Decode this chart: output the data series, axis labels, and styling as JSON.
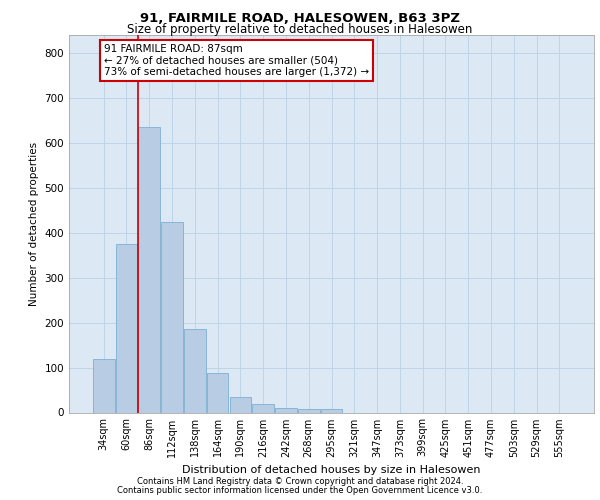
{
  "title1": "91, FAIRMILE ROAD, HALESOWEN, B63 3PZ",
  "title2": "Size of property relative to detached houses in Halesowen",
  "xlabel": "Distribution of detached houses by size in Halesowen",
  "ylabel": "Number of detached properties",
  "categories": [
    "34sqm",
    "60sqm",
    "86sqm",
    "112sqm",
    "138sqm",
    "164sqm",
    "190sqm",
    "216sqm",
    "242sqm",
    "268sqm",
    "295sqm",
    "321sqm",
    "347sqm",
    "373sqm",
    "399sqm",
    "425sqm",
    "451sqm",
    "477sqm",
    "503sqm",
    "529sqm",
    "555sqm"
  ],
  "values": [
    120,
    375,
    635,
    425,
    185,
    88,
    35,
    18,
    10,
    8,
    8,
    0,
    0,
    0,
    0,
    0,
    0,
    0,
    0,
    0,
    0
  ],
  "bar_color": "#b8cce4",
  "bar_edge_color": "#7bafd4",
  "grid_color": "#c0d4e8",
  "background_color": "#dce9f5",
  "vline_color": "#cc0000",
  "annotation_line1": "91 FAIRMILE ROAD: 87sqm",
  "annotation_line2": "← 27% of detached houses are smaller (504)",
  "annotation_line3": "73% of semi-detached houses are larger (1,372) →",
  "annotation_box_color": "#cc0000",
  "ylim": [
    0,
    840
  ],
  "yticks": [
    0,
    100,
    200,
    300,
    400,
    500,
    600,
    700,
    800
  ],
  "footer1": "Contains HM Land Registry data © Crown copyright and database right 2024.",
  "footer2": "Contains public sector information licensed under the Open Government Licence v3.0."
}
